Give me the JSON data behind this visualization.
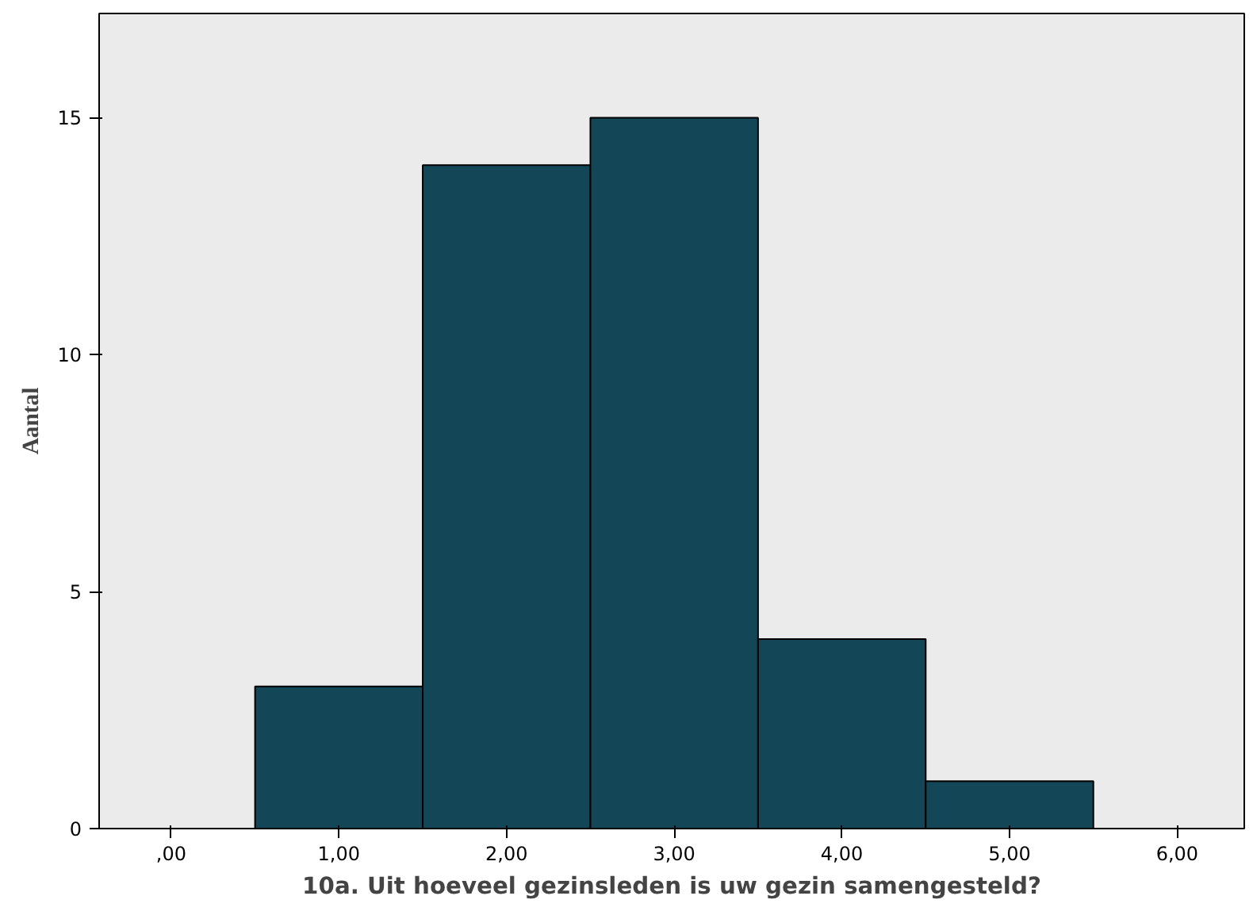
{
  "chart_data": {
    "type": "histogram",
    "xlabel": "10a. Uit hoeveel gezinsleden is uw gezin samengesteld?",
    "ylabel": "Aantal",
    "bins": [
      0.5,
      1.5,
      2.5,
      3.5,
      4.5,
      5.5
    ],
    "values": [
      3,
      14,
      15,
      4,
      1
    ],
    "color": "#134656",
    "xlim": [
      -0.43,
      6.4
    ],
    "ylim": [
      0,
      17.2
    ],
    "xticks": [
      {
        "value": 0,
        "label": ",00"
      },
      {
        "value": 1,
        "label": "1,00"
      },
      {
        "value": 2,
        "label": "2,00"
      },
      {
        "value": 3,
        "label": "3,00"
      },
      {
        "value": 4,
        "label": "4,00"
      },
      {
        "value": 5,
        "label": "5,00"
      },
      {
        "value": 6,
        "label": "6,00"
      }
    ],
    "yticks": [
      0,
      5,
      10,
      15
    ],
    "grid": false
  }
}
